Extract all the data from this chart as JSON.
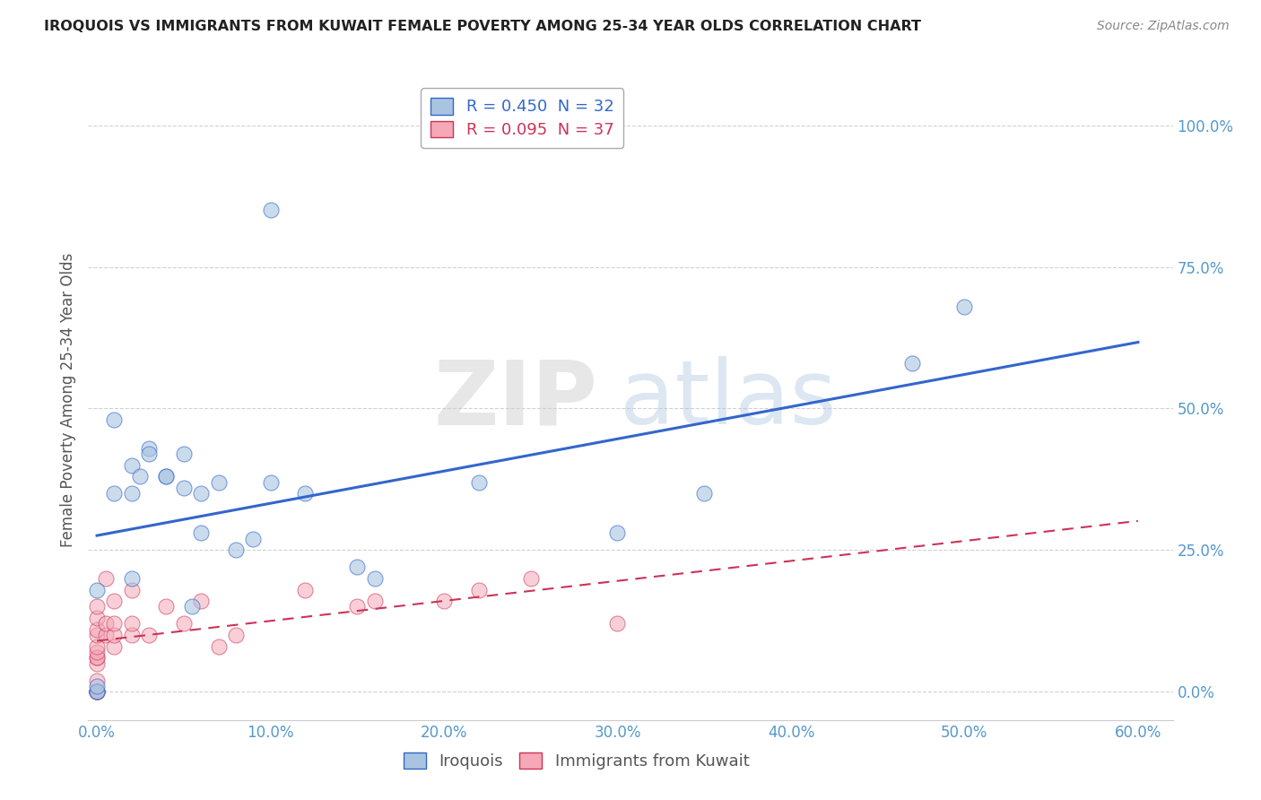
{
  "title": "IROQUOIS VS IMMIGRANTS FROM KUWAIT FEMALE POVERTY AMONG 25-34 YEAR OLDS CORRELATION CHART",
  "source": "Source: ZipAtlas.com",
  "xlabel_ticks": [
    "0.0%",
    "10.0%",
    "20.0%",
    "30.0%",
    "40.0%",
    "50.0%",
    "60.0%"
  ],
  "ylabel_ticks": [
    "0.0%",
    "25.0%",
    "50.0%",
    "75.0%",
    "100.0%"
  ],
  "xlim": [
    -0.005,
    0.62
  ],
  "ylim": [
    -0.05,
    1.08
  ],
  "ylabel": "Female Poverty Among 25-34 Year Olds",
  "legend_series": [
    {
      "label": "R = 0.450  N = 32",
      "color": "#a8c4e0"
    },
    {
      "label": "R = 0.095  N = 37",
      "color": "#f4a8b8"
    }
  ],
  "iroquois_x": [
    0.0,
    0.0,
    0.0,
    0.0,
    0.01,
    0.01,
    0.02,
    0.02,
    0.02,
    0.025,
    0.03,
    0.03,
    0.04,
    0.04,
    0.05,
    0.05,
    0.055,
    0.06,
    0.06,
    0.07,
    0.08,
    0.09,
    0.1,
    0.1,
    0.12,
    0.15,
    0.16,
    0.22,
    0.3,
    0.35,
    0.47,
    0.5
  ],
  "iroquois_y": [
    0.0,
    0.0,
    0.01,
    0.18,
    0.48,
    0.35,
    0.4,
    0.35,
    0.2,
    0.38,
    0.43,
    0.42,
    0.38,
    0.38,
    0.42,
    0.36,
    0.15,
    0.35,
    0.28,
    0.37,
    0.25,
    0.27,
    0.85,
    0.37,
    0.35,
    0.22,
    0.2,
    0.37,
    0.28,
    0.35,
    0.58,
    0.68
  ],
  "kuwait_x": [
    0.0,
    0.0,
    0.0,
    0.0,
    0.0,
    0.0,
    0.0,
    0.0,
    0.0,
    0.0,
    0.0,
    0.0,
    0.0,
    0.0,
    0.005,
    0.005,
    0.005,
    0.01,
    0.01,
    0.01,
    0.01,
    0.02,
    0.02,
    0.02,
    0.03,
    0.04,
    0.05,
    0.06,
    0.07,
    0.08,
    0.12,
    0.15,
    0.16,
    0.2,
    0.22,
    0.25,
    0.3
  ],
  "kuwait_y": [
    0.0,
    0.0,
    0.0,
    0.0,
    0.02,
    0.05,
    0.06,
    0.06,
    0.07,
    0.08,
    0.1,
    0.11,
    0.13,
    0.15,
    0.1,
    0.12,
    0.2,
    0.08,
    0.1,
    0.12,
    0.16,
    0.1,
    0.12,
    0.18,
    0.1,
    0.15,
    0.12,
    0.16,
    0.08,
    0.1,
    0.18,
    0.15,
    0.16,
    0.16,
    0.18,
    0.2,
    0.12
  ],
  "iroquois_color": "#a8c4e0",
  "kuwait_color": "#f4a8b8",
  "iroquois_line_color": "#3366cc",
  "kuwait_line_color": "#cc3355",
  "background_color": "#ffffff",
  "watermark_zip": "ZIP",
  "watermark_atlas": "atlas",
  "watermark_zip_color": "#d0d0d0",
  "watermark_atlas_color": "#a8c4e0",
  "tick_color": "#5599cc",
  "ylabel_color": "#555555",
  "title_color": "#222222",
  "source_color": "#888888"
}
